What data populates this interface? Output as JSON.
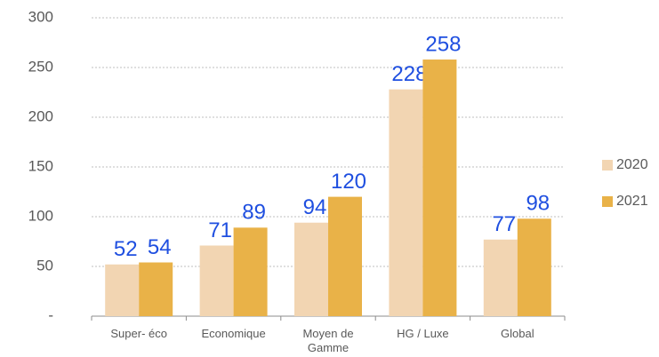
{
  "chart_data": {
    "type": "bar",
    "categories": [
      "Super- éco",
      "Economique",
      "Moyen de Gamme",
      "HG / Luxe",
      "Global"
    ],
    "series": [
      {
        "name": "2020",
        "color": "#f2d5b2",
        "values": [
          52,
          71,
          94,
          228,
          77
        ]
      },
      {
        "name": "2021",
        "color": "#e9b248",
        "values": [
          54,
          89,
          120,
          258,
          98
        ]
      }
    ],
    "ylim": [
      0,
      300
    ],
    "yticks": [
      {
        "value": 0,
        "label": "-"
      },
      50,
      100,
      150,
      200,
      250,
      300
    ],
    "grid": true,
    "legend": "right"
  }
}
